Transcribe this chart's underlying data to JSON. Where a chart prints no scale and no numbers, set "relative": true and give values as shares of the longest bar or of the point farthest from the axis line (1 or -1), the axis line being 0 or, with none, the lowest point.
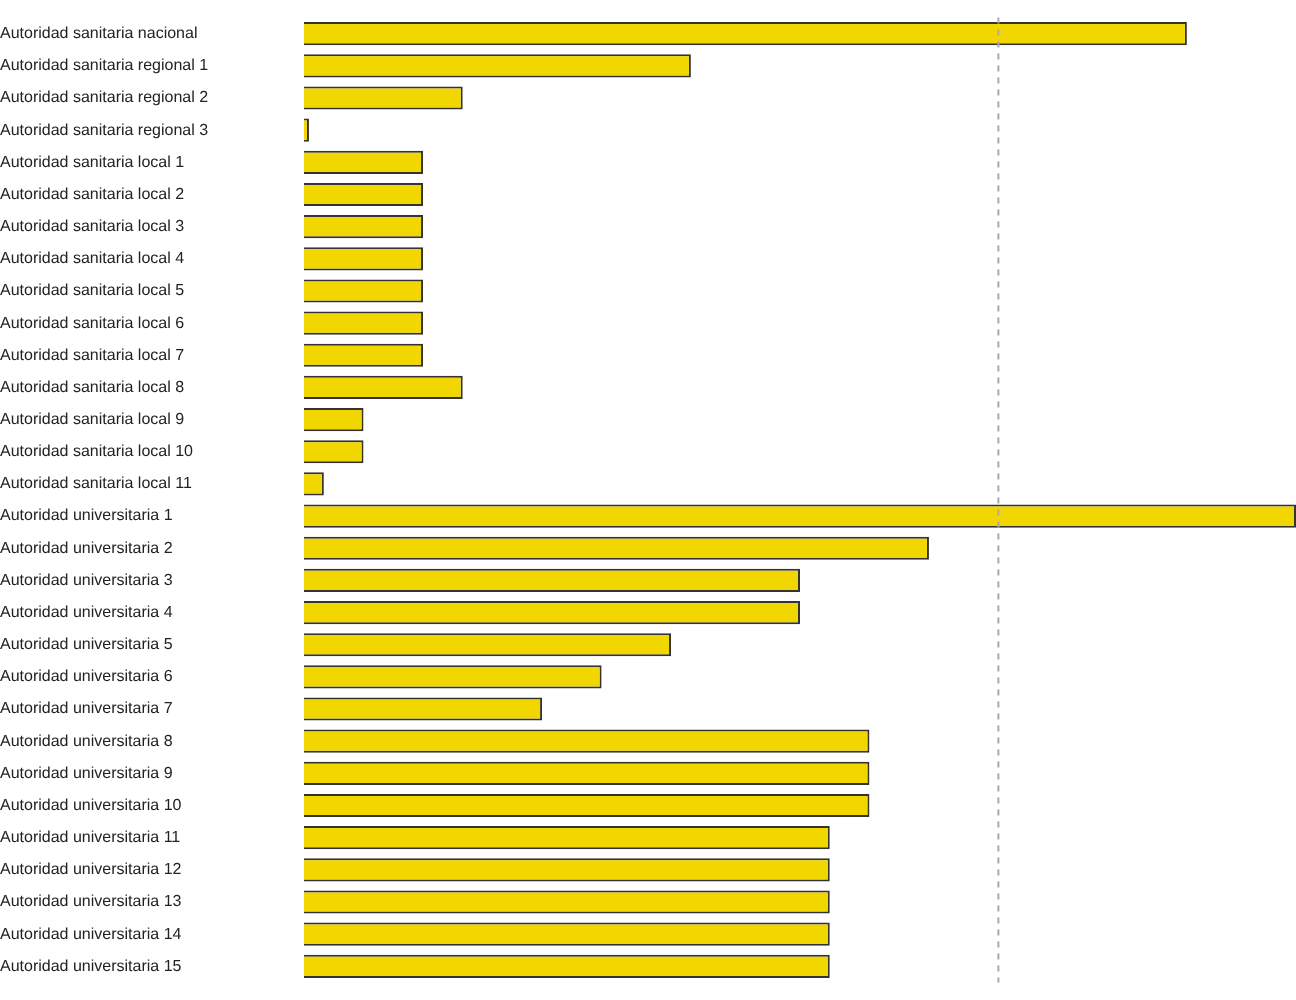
{
  "chart_data": {
    "type": "bar",
    "orientation": "horizontal",
    "relative": true,
    "categories": [
      "Autoridad sanitaria nacional",
      "Autoridad sanitaria regional 1",
      "Autoridad sanitaria regional 2",
      "Autoridad sanitaria regional 3",
      "Autoridad sanitaria local 1",
      "Autoridad sanitaria local 2",
      "Autoridad sanitaria local 3",
      "Autoridad sanitaria local 4",
      "Autoridad sanitaria local 5",
      "Autoridad sanitaria local 6",
      "Autoridad sanitaria local 7",
      "Autoridad sanitaria local 8",
      "Autoridad sanitaria local 9",
      "Autoridad sanitaria local 10",
      "Autoridad sanitaria local 11",
      "Autoridad universitaria 1",
      "Autoridad universitaria 2",
      "Autoridad universitaria 3",
      "Autoridad universitaria 4",
      "Autoridad universitaria 5",
      "Autoridad universitaria 6",
      "Autoridad universitaria 7",
      "Autoridad universitaria 8",
      "Autoridad universitaria 9",
      "Autoridad universitaria 10",
      "Autoridad universitaria 11",
      "Autoridad universitaria 12",
      "Autoridad universitaria 13",
      "Autoridad universitaria 14",
      "Autoridad universitaria 15"
    ],
    "values": [
      0.89,
      0.39,
      0.16,
      0.005,
      0.12,
      0.12,
      0.12,
      0.12,
      0.12,
      0.12,
      0.12,
      0.16,
      0.06,
      0.06,
      0.02,
      1,
      0.63,
      0.5,
      0.5,
      0.37,
      0.3,
      0.24,
      0.57,
      0.57,
      0.57,
      0.53,
      0.53,
      0.53,
      0.53,
      0.53
    ],
    "color": "#f2d600",
    "ref_lines": [
      {
        "axis": "x",
        "value": 0.7,
        "line_style": "dashed",
        "color": "#aaaaaa"
      }
    ],
    "grid": false,
    "legend": false
  }
}
